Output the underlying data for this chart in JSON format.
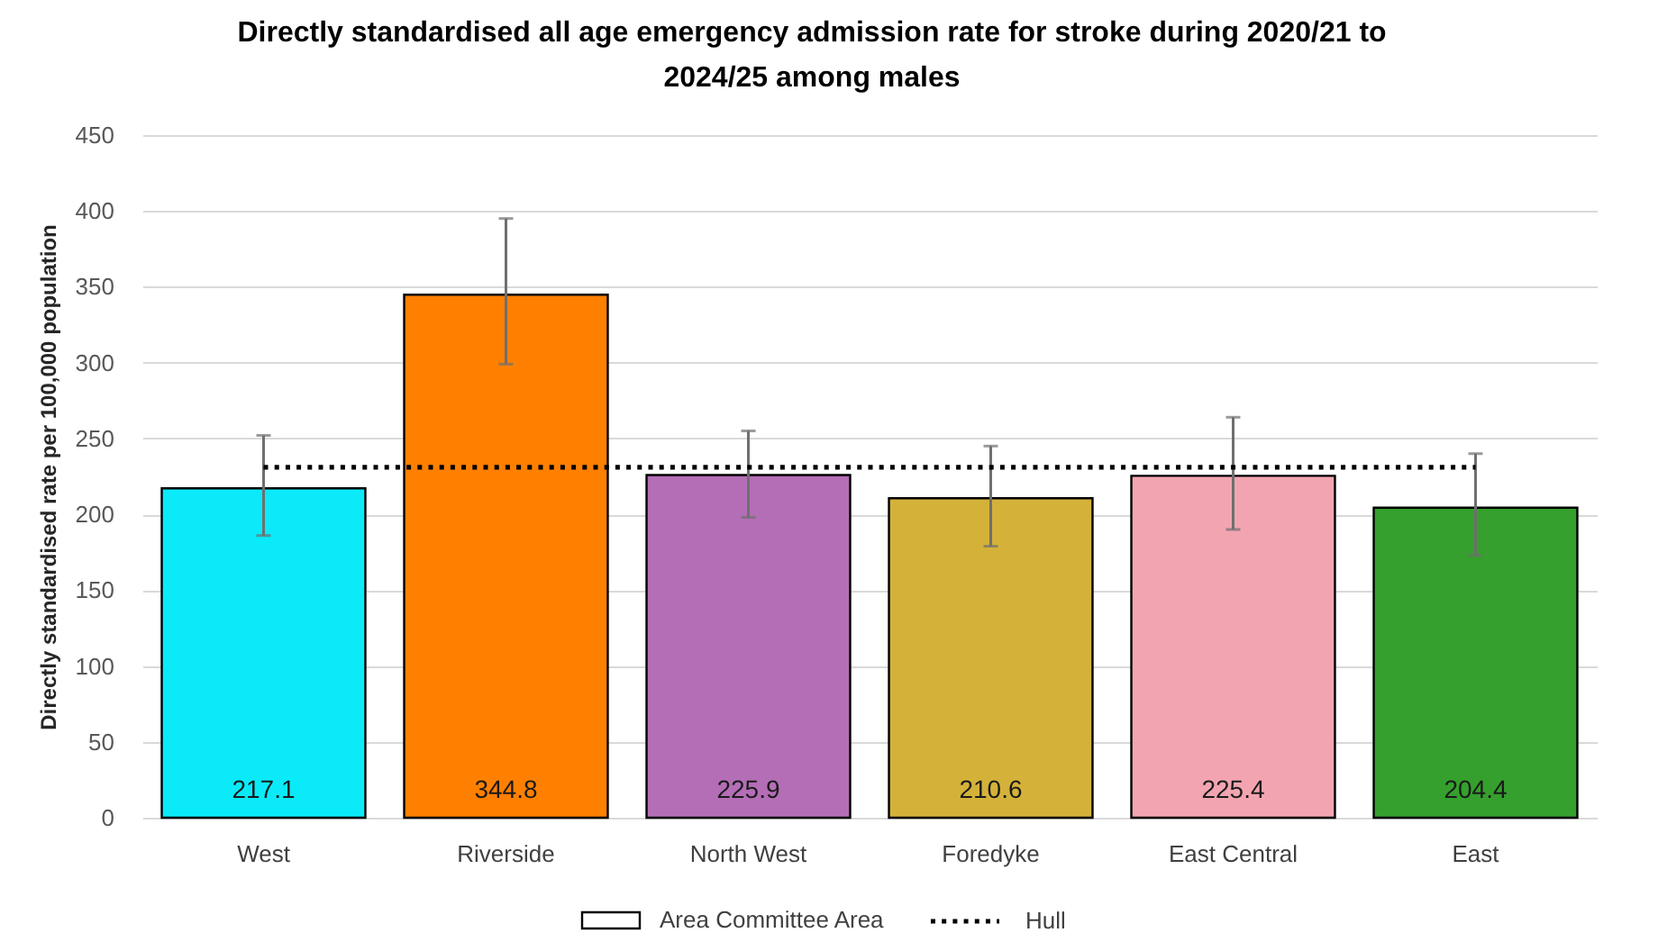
{
  "chart_data": {
    "type": "bar",
    "title": "Directly standardised all age emergency admission rate for stroke during 2020/21 to 2024/25 among males",
    "ylabel": "Directly standardised rate per 100,000 population",
    "categories": [
      "West",
      "Riverside",
      "North West",
      "Foredyke",
      "East Central",
      "East"
    ],
    "series": [
      {
        "name": "Area Committee Area",
        "colors": [
          "#0aeaf9",
          "#ff8000",
          "#b46eb6",
          "#d4b23a",
          "#f2a5b1",
          "#35a02d"
        ],
        "values": [
          217.1,
          344.8,
          225.9,
          210.6,
          225.4,
          204.4
        ],
        "value_labels": [
          "217.1",
          "344.8",
          "225.9",
          "210.6",
          "225.4",
          "204.4"
        ],
        "errors": [
          [
            186,
            252
          ],
          [
            299,
            395
          ],
          [
            198,
            255
          ],
          [
            179,
            245
          ],
          [
            190,
            264
          ],
          [
            173,
            240
          ]
        ]
      },
      {
        "name": "Hull",
        "type": "line",
        "color": "#000000",
        "values": [
          231,
          231,
          231,
          231,
          231,
          231
        ],
        "line_style": "dotted",
        "marker": "none"
      }
    ],
    "ylim": [
      0,
      450
    ],
    "yticks": [
      0,
      50,
      100,
      150,
      200,
      250,
      300,
      350,
      400,
      450
    ],
    "grid": "y",
    "legend": "bottom"
  }
}
